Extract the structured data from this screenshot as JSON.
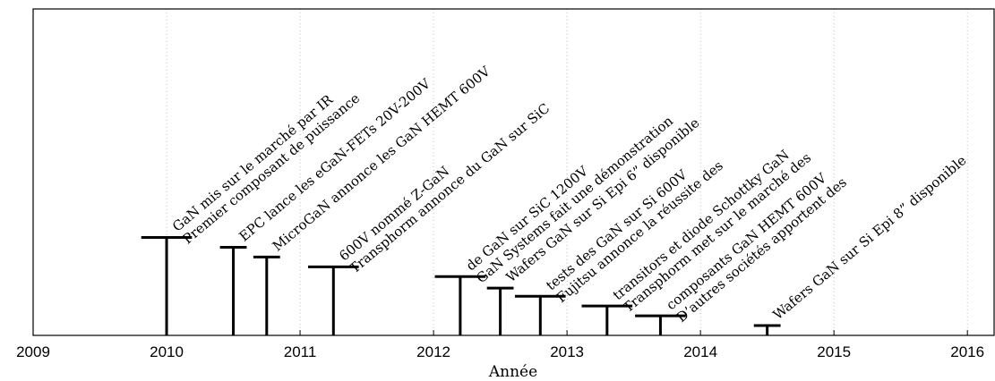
{
  "chart_data": {
    "type": "timeline",
    "title": "",
    "xlabel": "Année",
    "ylabel": "",
    "xlim": [
      2009,
      2016.2
    ],
    "ylim": [
      0,
      10
    ],
    "xticks": [
      "2009",
      "2010",
      "2011",
      "2012",
      "2013",
      "2014",
      "2015",
      "2016"
    ],
    "grid": "x-dotted",
    "events": [
      {
        "x": 2010.0,
        "height": 3.0,
        "cap_width": 0.38,
        "label_lines": [
          "Premier composant de puissance",
          "GaN mis sur le marché par IR"
        ]
      },
      {
        "x": 2010.5,
        "height": 2.7,
        "cap_width": 0.2,
        "label_lines": [
          "EPC lance les eGaN-FETs 20V-200V"
        ]
      },
      {
        "x": 2010.75,
        "height": 2.4,
        "cap_width": 0.2,
        "label_lines": [
          "MicroGaN annonce les GaN HEMT 600V"
        ]
      },
      {
        "x": 2011.25,
        "height": 2.1,
        "cap_width": 0.38,
        "label_lines": [
          "Transphorm annonce du GaN sur SiC",
          "600V nommé Z-GaN"
        ]
      },
      {
        "x": 2012.2,
        "height": 1.8,
        "cap_width": 0.38,
        "label_lines": [
          "GaN Systems fait une démonstration",
          "de GaN sur SiC 1200V"
        ]
      },
      {
        "x": 2012.5,
        "height": 1.45,
        "cap_width": 0.2,
        "label_lines": [
          "Wafers GaN sur Si Epi 6” disponible"
        ]
      },
      {
        "x": 2012.8,
        "height": 1.2,
        "cap_width": 0.38,
        "label_lines": [
          "Fujitsu annonce la réussite des",
          "tests des GaN sur Si 600V"
        ]
      },
      {
        "x": 2013.3,
        "height": 0.9,
        "cap_width": 0.38,
        "label_lines": [
          "Transphorm met sur le marché des",
          "transitors et diode Schottky GaN"
        ]
      },
      {
        "x": 2013.7,
        "height": 0.6,
        "cap_width": 0.38,
        "label_lines": [
          "D’autres sociétés apportent des",
          "composants GaN HEMT 600V"
        ]
      },
      {
        "x": 2014.5,
        "height": 0.3,
        "cap_width": 0.2,
        "label_lines": [
          "Wafers GaN sur Si Epi 8” disponible"
        ]
      }
    ]
  }
}
